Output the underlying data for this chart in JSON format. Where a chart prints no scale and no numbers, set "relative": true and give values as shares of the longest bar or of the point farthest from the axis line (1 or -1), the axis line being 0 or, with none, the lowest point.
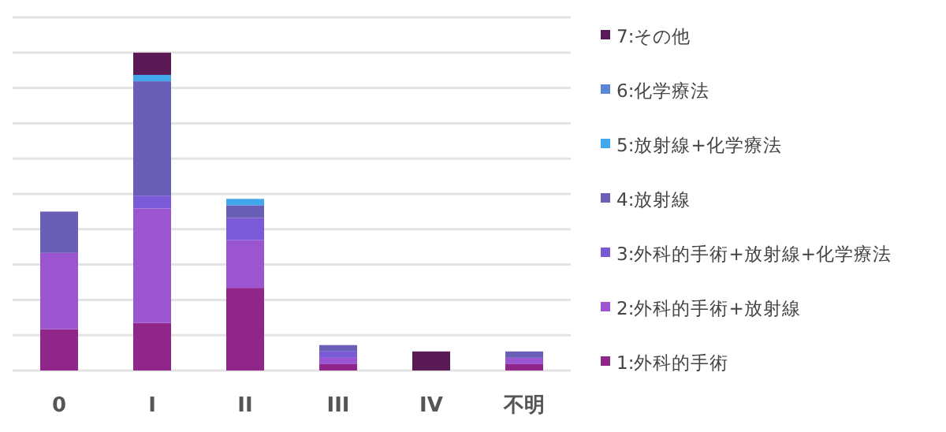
{
  "chart_data": {
    "type": "bar",
    "stacked": true,
    "relative": true,
    "grid": "y",
    "legend": "right",
    "categories": [
      "0",
      "I",
      "II",
      "III",
      "IV",
      "不明"
    ],
    "series": [
      {
        "name": "1:外科的手術",
        "color": "#90268a",
        "values": [
          0.13,
          0.15,
          0.26,
          0.02,
          0,
          0.02
        ]
      },
      {
        "name": "2:外科的手術+放射線",
        "color": "#9b55d0",
        "values": [
          0.24,
          0.36,
          0.15,
          0.02,
          0,
          0.02
        ]
      },
      {
        "name": "3:外科的手術+放射線+化学療法",
        "color": "#7b5ad8",
        "values": [
          0,
          0.04,
          0.07,
          0.02,
          0,
          0
        ]
      },
      {
        "name": "4:放射線",
        "color": "#6a5fb6",
        "values": [
          0.13,
          0.36,
          0.04,
          0.02,
          0,
          0.02
        ]
      },
      {
        "name": "5:放射線+化学療法",
        "color": "#41a8ee",
        "values": [
          0,
          0.02,
          0.02,
          0,
          0,
          0
        ]
      },
      {
        "name": "6:化学療法",
        "color": "#5b86d8",
        "values": [
          0,
          0,
          0,
          0,
          0,
          0
        ]
      },
      {
        "name": "7:その他",
        "color": "#5a1a55",
        "values": [
          0,
          0.07,
          0,
          0,
          0.06,
          0
        ]
      }
    ]
  }
}
